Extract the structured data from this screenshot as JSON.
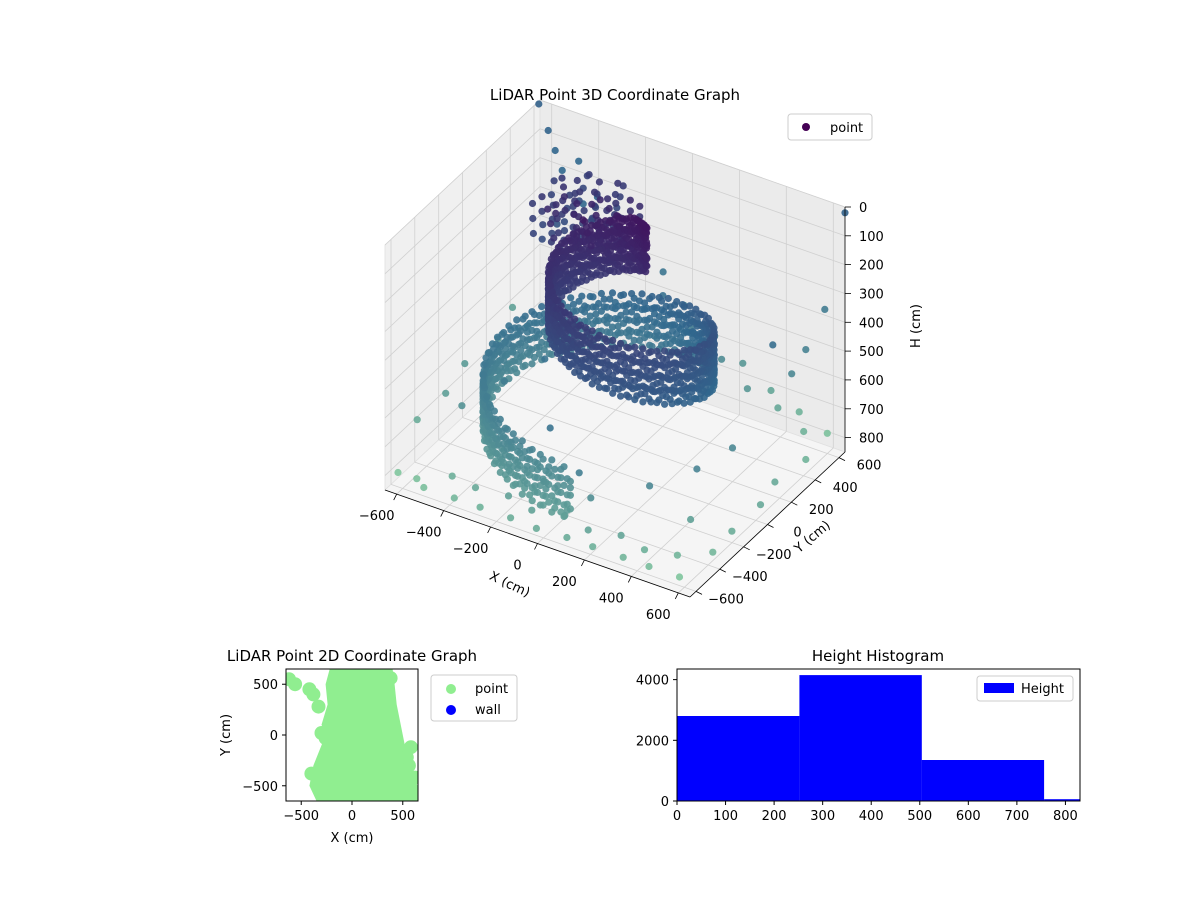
{
  "colors": {
    "viridis_low": "#440154",
    "viridis_mid": "#31688e",
    "viridis_high": "#8fd7a0",
    "pane": "#f2f2f2",
    "grid": "#d0d0d0",
    "point_2d": "#90ee90",
    "wall": "#0000ff",
    "hist_bar": "#0000ff"
  },
  "chart_data": [
    {
      "type": "scatter",
      "projection": "3d",
      "title": "LiDAR Point 3D Coordinate Graph",
      "xlabel": "X (cm)",
      "ylabel": "Y (cm)",
      "zlabel": "H (cm)",
      "xlim": [
        -650,
        650
      ],
      "ylim": [
        -650,
        650
      ],
      "zlim": [
        850,
        0
      ],
      "x_ticks": [
        "−600",
        "−400",
        "−200",
        "0",
        "200",
        "400",
        "600"
      ],
      "y_ticks": [
        "−600",
        "−400",
        "−200",
        "0",
        "200",
        "400",
        "600"
      ],
      "z_ticks": [
        "0",
        "100",
        "200",
        "300",
        "400",
        "500",
        "600",
        "700",
        "800"
      ],
      "legend": [
        {
          "label": "point",
          "color": "#440154"
        }
      ],
      "legend_position": "top-right",
      "grid": true,
      "colormap": "viridis",
      "spiral": {
        "description_of_points": "dense spiral wall of points rising from the floor toward the ceiling",
        "radius_start": 150,
        "radius_end": 550,
        "turns": 1.6,
        "height_range": [
          100,
          700
        ]
      },
      "scattered_points": [
        {
          "x": -600,
          "y": 620,
          "z": 80
        },
        {
          "x": -560,
          "y": 600,
          "z": 130
        },
        {
          "x": -520,
          "y": 580,
          "z": 180
        },
        {
          "x": -480,
          "y": 640,
          "z": 160
        },
        {
          "x": -420,
          "y": 560,
          "z": 260
        },
        {
          "x": -380,
          "y": 600,
          "z": 240
        },
        {
          "x": -320,
          "y": 560,
          "z": 300
        },
        {
          "x": -260,
          "y": 520,
          "z": 340
        },
        {
          "x": -200,
          "y": 600,
          "z": 310
        },
        {
          "x": -150,
          "y": 540,
          "z": 380
        },
        {
          "x": -100,
          "y": 600,
          "z": 420
        },
        {
          "x": -60,
          "y": 520,
          "z": 460
        },
        {
          "x": 0,
          "y": 580,
          "z": 500
        },
        {
          "x": 60,
          "y": 520,
          "z": 540
        },
        {
          "x": 120,
          "y": 600,
          "z": 580
        },
        {
          "x": 180,
          "y": 540,
          "z": 620
        },
        {
          "x": 240,
          "y": 600,
          "z": 640
        },
        {
          "x": 300,
          "y": 520,
          "z": 680
        },
        {
          "x": 360,
          "y": 600,
          "z": 700
        },
        {
          "x": 420,
          "y": 540,
          "z": 720
        },
        {
          "x": 480,
          "y": 600,
          "z": 740
        },
        {
          "x": 540,
          "y": 520,
          "z": 760
        },
        {
          "x": 600,
          "y": 600,
          "z": 780
        },
        {
          "x": -620,
          "y": -600,
          "z": 800
        },
        {
          "x": -560,
          "y": -560,
          "z": 820
        },
        {
          "x": -500,
          "y": -620,
          "z": 810
        },
        {
          "x": -440,
          "y": -500,
          "z": 800
        },
        {
          "x": -380,
          "y": -600,
          "z": 820
        },
        {
          "x": -320,
          "y": -540,
          "z": 790
        },
        {
          "x": -260,
          "y": -620,
          "z": 810
        },
        {
          "x": -200,
          "y": -500,
          "z": 800
        },
        {
          "x": -140,
          "y": -600,
          "z": 820
        },
        {
          "x": -80,
          "y": -540,
          "z": 800
        },
        {
          "x": -20,
          "y": -620,
          "z": 815
        },
        {
          "x": 40,
          "y": -500,
          "z": 800
        },
        {
          "x": 100,
          "y": -600,
          "z": 820
        },
        {
          "x": 160,
          "y": -540,
          "z": 800
        },
        {
          "x": 220,
          "y": -620,
          "z": 810
        },
        {
          "x": 280,
          "y": -500,
          "z": 800
        },
        {
          "x": 340,
          "y": -600,
          "z": 820
        },
        {
          "x": 400,
          "y": -540,
          "z": 800
        },
        {
          "x": 460,
          "y": -620,
          "z": 810
        },
        {
          "x": 520,
          "y": -500,
          "z": 800
        },
        {
          "x": 580,
          "y": -600,
          "z": 820
        },
        {
          "x": 620,
          "y": -400,
          "z": 800
        },
        {
          "x": 600,
          "y": -200,
          "z": 810
        },
        {
          "x": 620,
          "y": 0,
          "z": 790
        },
        {
          "x": 580,
          "y": 200,
          "z": 800
        },
        {
          "x": 620,
          "y": 380,
          "z": 780
        },
        {
          "x": -640,
          "y": -400,
          "z": 700
        },
        {
          "x": -620,
          "y": -200,
          "z": 680
        },
        {
          "x": -640,
          "y": 0,
          "z": 660
        },
        {
          "x": -600,
          "y": 200,
          "z": 640
        },
        {
          "x": -640,
          "y": 400,
          "z": 620
        },
        {
          "x": -500,
          "y": -300,
          "z": 650
        },
        {
          "x": -420,
          "y": -100,
          "z": 620
        },
        {
          "x": -350,
          "y": 100,
          "z": 600
        },
        {
          "x": -280,
          "y": -350,
          "z": 700
        },
        {
          "x": -200,
          "y": -150,
          "z": 700
        },
        {
          "x": 300,
          "y": -300,
          "z": 700
        },
        {
          "x": 400,
          "y": -100,
          "z": 690
        },
        {
          "x": 450,
          "y": 100,
          "z": 680
        },
        {
          "x": 500,
          "y": -350,
          "z": 740
        },
        {
          "x": -100,
          "y": -400,
          "z": 760
        },
        {
          "x": 100,
          "y": -400,
          "z": 760
        },
        {
          "x": 0,
          "y": -300,
          "z": 740
        },
        {
          "x": 650,
          "y": 650,
          "z": 20
        },
        {
          "x": -650,
          "y": 640,
          "z": 10
        },
        {
          "x": 640,
          "y": 500,
          "z": 300
        },
        {
          "x": 600,
          "y": 420,
          "z": 420
        },
        {
          "x": 560,
          "y": 380,
          "z": 500
        },
        {
          "x": 520,
          "y": 300,
          "z": 380
        }
      ]
    },
    {
      "type": "scatter",
      "title": "LiDAR Point 2D Coordinate Graph",
      "xlabel": "X (cm)",
      "ylabel": "Y (cm)",
      "xlim": [
        -650,
        650
      ],
      "ylim": [
        -650,
        650
      ],
      "x_ticks": [
        "−500",
        "0",
        "500"
      ],
      "y_ticks": [
        "−500",
        "0",
        "500"
      ],
      "legend": [
        {
          "label": "point",
          "color": "#90ee90"
        },
        {
          "label": "wall",
          "color": "#0000ff"
        }
      ],
      "legend_position": "outside-right",
      "series": [
        {
          "name": "point",
          "color": "#90ee90",
          "region_polygon": [
            [
              -220,
              650
            ],
            [
              400,
              650
            ],
            [
              420,
              500
            ],
            [
              440,
              300
            ],
            [
              500,
              0
            ],
            [
              560,
              -300
            ],
            [
              600,
              -450
            ],
            [
              650,
              -500
            ],
            [
              650,
              -650
            ],
            [
              -350,
              -650
            ],
            [
              -420,
              -500
            ],
            [
              -380,
              -300
            ],
            [
              -300,
              -100
            ],
            [
              -260,
              0
            ],
            [
              -300,
              100
            ],
            [
              -240,
              300
            ],
            [
              -260,
              500
            ]
          ],
          "blobs": [
            {
              "x": -620,
              "y": 550
            },
            {
              "x": -560,
              "y": 500
            },
            {
              "x": -420,
              "y": 450
            },
            {
              "x": -380,
              "y": 400
            },
            {
              "x": -330,
              "y": 280
            },
            {
              "x": -300,
              "y": 20
            },
            {
              "x": -260,
              "y": -30
            },
            {
              "x": -400,
              "y": -380
            },
            {
              "x": -300,
              "y": -540
            },
            {
              "x": 580,
              "y": -120
            },
            {
              "x": 560,
              "y": -300
            },
            {
              "x": 620,
              "y": -420
            },
            {
              "x": 600,
              "y": -550
            },
            {
              "x": 540,
              "y": -220
            },
            {
              "x": 380,
              "y": 560
            },
            {
              "x": 300,
              "y": 600
            }
          ]
        },
        {
          "name": "wall",
          "color": "#0000ff",
          "points": []
        }
      ]
    },
    {
      "type": "bar",
      "title": "Height Histogram",
      "xlabel": "",
      "ylabel": "",
      "xlim": [
        0,
        830
      ],
      "ylim": [
        0,
        4350
      ],
      "x_ticks": [
        "0",
        "100",
        "200",
        "300",
        "400",
        "500",
        "600",
        "700",
        "800"
      ],
      "y_ticks": [
        "0",
        "2000",
        "4000"
      ],
      "legend": [
        {
          "label": "Height",
          "color": "#0000ff"
        }
      ],
      "legend_position": "top-right",
      "bins": [
        {
          "start": 0,
          "end": 252,
          "count": 2800
        },
        {
          "start": 252,
          "end": 504,
          "count": 4150
        },
        {
          "start": 504,
          "end": 756,
          "count": 1350
        },
        {
          "start": 756,
          "end": 1008,
          "count": 60
        }
      ]
    }
  ]
}
